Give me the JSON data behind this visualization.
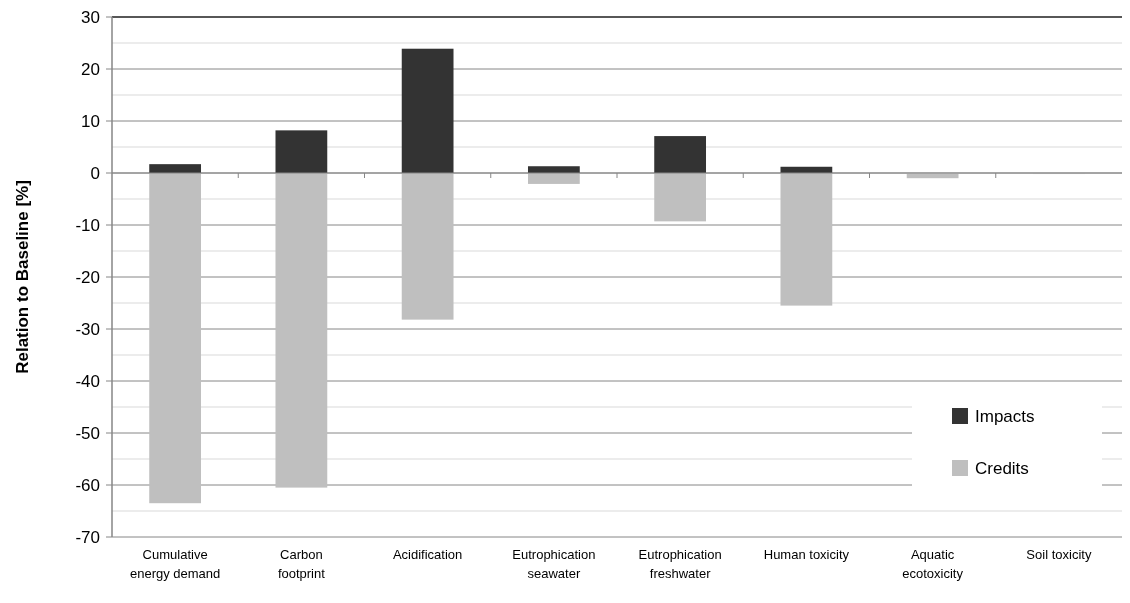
{
  "chart_data": {
    "type": "bar",
    "ylabel": "Relation to Baseline  [%]",
    "categories": [
      "Cumulative energy demand",
      "Carbon footprint",
      "Acidification",
      "Eutrophication seawater",
      "Eutrophication freshwater",
      "Human toxicity",
      "Aquatic ecotoxicity",
      "Soil toxicity"
    ],
    "series": [
      {
        "name": "Impacts",
        "color": "#333333",
        "values": [
          1.7,
          8.2,
          23.9,
          1.3,
          7.1,
          1.2,
          null,
          null
        ]
      },
      {
        "name": "Credits",
        "color": "#bfbfbf",
        "values": [
          -63.5,
          -60.5,
          -28.2,
          -2.1,
          -9.3,
          -25.5,
          -1.0,
          -0.2
        ]
      }
    ],
    "stacked": true,
    "ylim": [
      -70,
      30
    ],
    "yticks": [
      -70,
      -60,
      -50,
      -40,
      -30,
      -20,
      -10,
      0,
      10,
      20,
      30
    ],
    "grid": "y",
    "legend": "bottom right"
  }
}
